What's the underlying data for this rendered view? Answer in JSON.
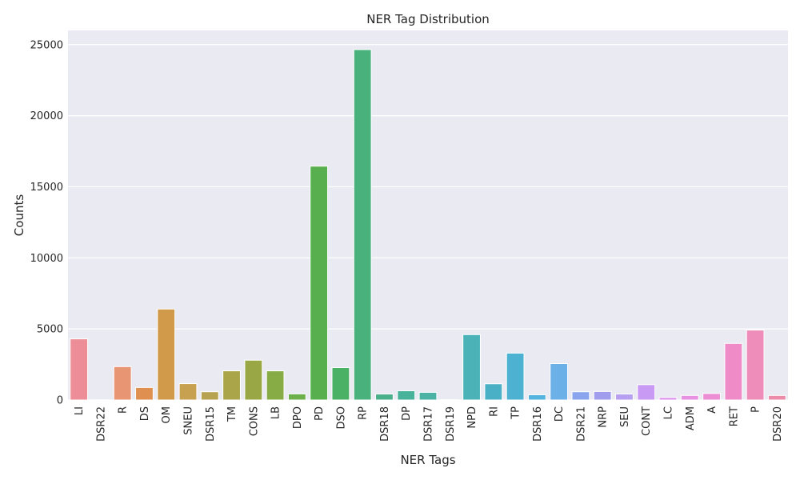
{
  "chart_data": {
    "type": "bar",
    "title": "NER Tag Distribution",
    "xlabel": "NER Tags",
    "ylabel": "Counts",
    "ylim": [
      0,
      26000
    ],
    "yticks": [
      0,
      5000,
      10000,
      15000,
      20000,
      25000
    ],
    "grid": true,
    "categories": [
      "LI",
      "DSR22",
      "R",
      "DS",
      "OM",
      "SNEU",
      "DSR15",
      "TM",
      "CONS",
      "LB",
      "DPO",
      "PD",
      "DSO",
      "RP",
      "DSR18",
      "DP",
      "DSR17",
      "DSR19",
      "NPD",
      "RI",
      "TP",
      "DSR16",
      "DC",
      "DSR21",
      "NRP",
      "SEU",
      "CONT",
      "LC",
      "ADM",
      "A",
      "RET",
      "P",
      "DSR20"
    ],
    "values": [
      4300,
      10,
      2350,
      880,
      6400,
      1150,
      580,
      2050,
      2800,
      2050,
      430,
      16450,
      2280,
      24650,
      420,
      650,
      540,
      20,
      4600,
      1140,
      3300,
      370,
      2560,
      580,
      600,
      420,
      1080,
      180,
      320,
      460,
      3980,
      4920,
      320
    ],
    "colors": [
      "#ec8d97",
      "#eb8f84",
      "#e89574",
      "#df8f4f",
      "#d19a4a",
      "#c7a050",
      "#b6a24f",
      "#a9a548",
      "#99a845",
      "#88ac45",
      "#6db04a",
      "#57b04d",
      "#4bb165",
      "#49b27c",
      "#49b08b",
      "#49b29a",
      "#4ab3a4",
      "#4ab3ae",
      "#4bb3b8",
      "#4ab0c6",
      "#4db2d2",
      "#55b3df",
      "#6cb0e8",
      "#8aa5ee",
      "#a09ded",
      "#b69ef0",
      "#c99af3",
      "#db93ef",
      "#e791e2",
      "#ed8ed5",
      "#ef8cc8",
      "#ee8cba",
      "#ec8ca9"
    ]
  }
}
